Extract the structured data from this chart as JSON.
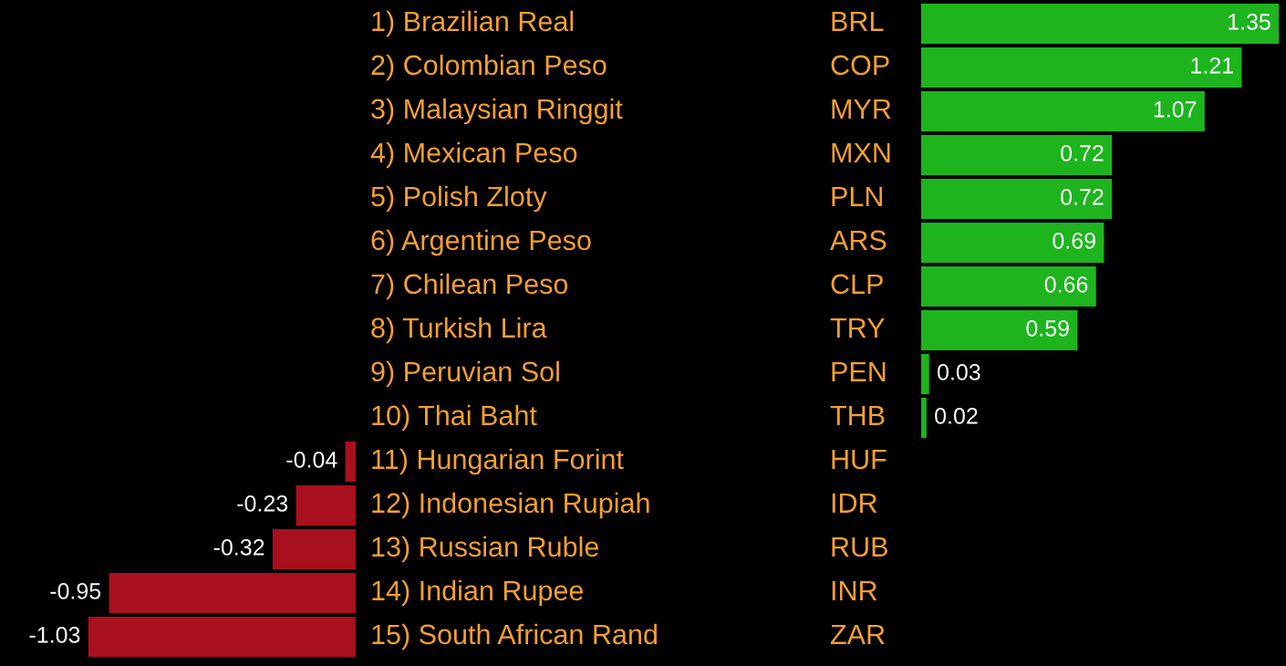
{
  "chart_data": [
    {
      "type": "bar",
      "orientation": "horizontal",
      "data_labels": true,
      "categories": [
        "1) Brazilian Real",
        "2) Colombian Peso",
        "3) Malaysian Ringgit",
        "4) Mexican Peso",
        "5) Polish Zloty",
        "6) Argentine Peso",
        "7) Chilean Peso",
        "8) Turkish Lira",
        "9) Peruvian Sol",
        "10) Thai Baht",
        "11) Hungarian Forint",
        "12) Indonesian Rupiah",
        "13) Russian Ruble",
        "14) Indian Rupee",
        "15) South African Rand"
      ],
      "values": [
        null,
        null,
        null,
        null,
        null,
        null,
        null,
        null,
        null,
        null,
        -0.04,
        -0.23,
        -0.32,
        -0.95,
        -1.03
      ],
      "colors": [
        "#a8101e",
        "#a8101e",
        "#a8101e",
        "#a8101e",
        "#a8101e",
        "#a8101e",
        "#a8101e",
        "#a8101e",
        "#a8101e",
        "#a8101e",
        "#a8101e",
        "#a8101e",
        "#a8101e",
        "#a8101e",
        "#a8101e"
      ]
    },
    {
      "type": "bar",
      "orientation": "horizontal",
      "data_labels": true,
      "categories": [
        "BRL",
        "COP",
        "MYR",
        "MXN",
        "PLN",
        "ARS",
        "CLP",
        "TRY",
        "PEN",
        "THB",
        "HUF",
        "IDR",
        "RUB",
        "INR",
        "ZAR"
      ],
      "values": [
        1.35,
        1.21,
        1.07,
        0.72,
        0.72,
        0.69,
        0.66,
        0.59,
        0.03,
        0.02,
        null,
        null,
        null,
        null,
        null
      ],
      "colors": [
        "#1eb41e",
        "#1eb41e",
        "#1eb41e",
        "#1eb41e",
        "#1eb41e",
        "#1eb41e",
        "#1eb41e",
        "#1eb41e",
        "#1eb41e",
        "#1eb41e",
        "#1eb41e",
        "#1eb41e",
        "#1eb41e",
        "#1eb41e",
        "#1eb41e"
      ]
    }
  ]
}
